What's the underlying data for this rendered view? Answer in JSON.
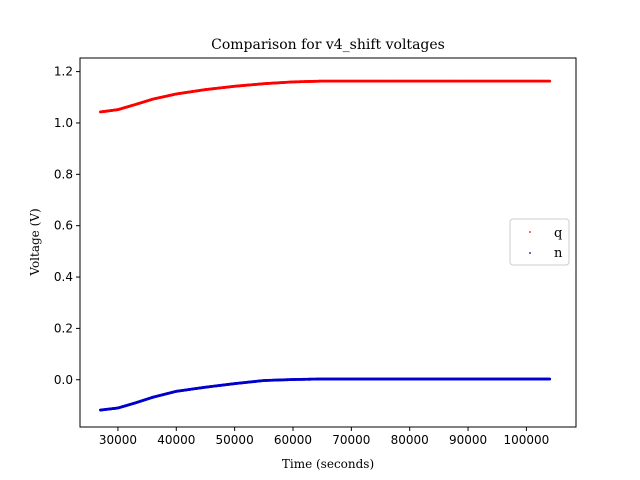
{
  "chart_data": {
    "type": "scatter",
    "title": "Comparison for v4_shift voltages",
    "xlabel": "Time (seconds)",
    "ylabel": "Voltage (V)",
    "xlim": [
      23500,
      108500
    ],
    "ylim": [
      -0.184,
      1.253
    ],
    "x_ticks": [
      30000,
      40000,
      50000,
      60000,
      70000,
      80000,
      90000,
      100000
    ],
    "y_ticks": [
      0.0,
      0.2,
      0.4,
      0.6,
      0.8,
      1.0,
      1.2
    ],
    "x_tick_labels": [
      "30000",
      "40000",
      "50000",
      "60000",
      "70000",
      "80000",
      "90000",
      "100000"
    ],
    "y_tick_labels": [
      "0.0",
      "0.2",
      "0.4",
      "0.6",
      "0.8",
      "1.0",
      "1.2"
    ],
    "grid": false,
    "legend_placement": "center-right",
    "series": [
      {
        "name": "q",
        "color": "#ff0000",
        "points": [
          [
            27000,
            1.043
          ],
          [
            30000,
            1.052
          ],
          [
            33000,
            1.072
          ],
          [
            36000,
            1.093
          ],
          [
            40000,
            1.113
          ],
          [
            45000,
            1.13
          ],
          [
            50000,
            1.143
          ],
          [
            55000,
            1.153
          ],
          [
            60000,
            1.16
          ],
          [
            65000,
            1.163
          ],
          [
            70000,
            1.163
          ],
          [
            77000,
            1.163
          ],
          [
            85000,
            1.163
          ],
          [
            95000,
            1.163
          ],
          [
            104000,
            1.163
          ]
        ]
      },
      {
        "name": "n",
        "color": "#0000cc",
        "points": [
          [
            27000,
            -0.118
          ],
          [
            30000,
            -0.11
          ],
          [
            33000,
            -0.09
          ],
          [
            36000,
            -0.068
          ],
          [
            40000,
            -0.045
          ],
          [
            45000,
            -0.029
          ],
          [
            50000,
            -0.015
          ],
          [
            55000,
            -0.003
          ],
          [
            60000,
            0.001
          ],
          [
            65000,
            0.003
          ],
          [
            70000,
            0.003
          ],
          [
            77000,
            0.003
          ],
          [
            85000,
            0.003
          ],
          [
            95000,
            0.003
          ],
          [
            104000,
            0.003
          ]
        ]
      }
    ]
  }
}
